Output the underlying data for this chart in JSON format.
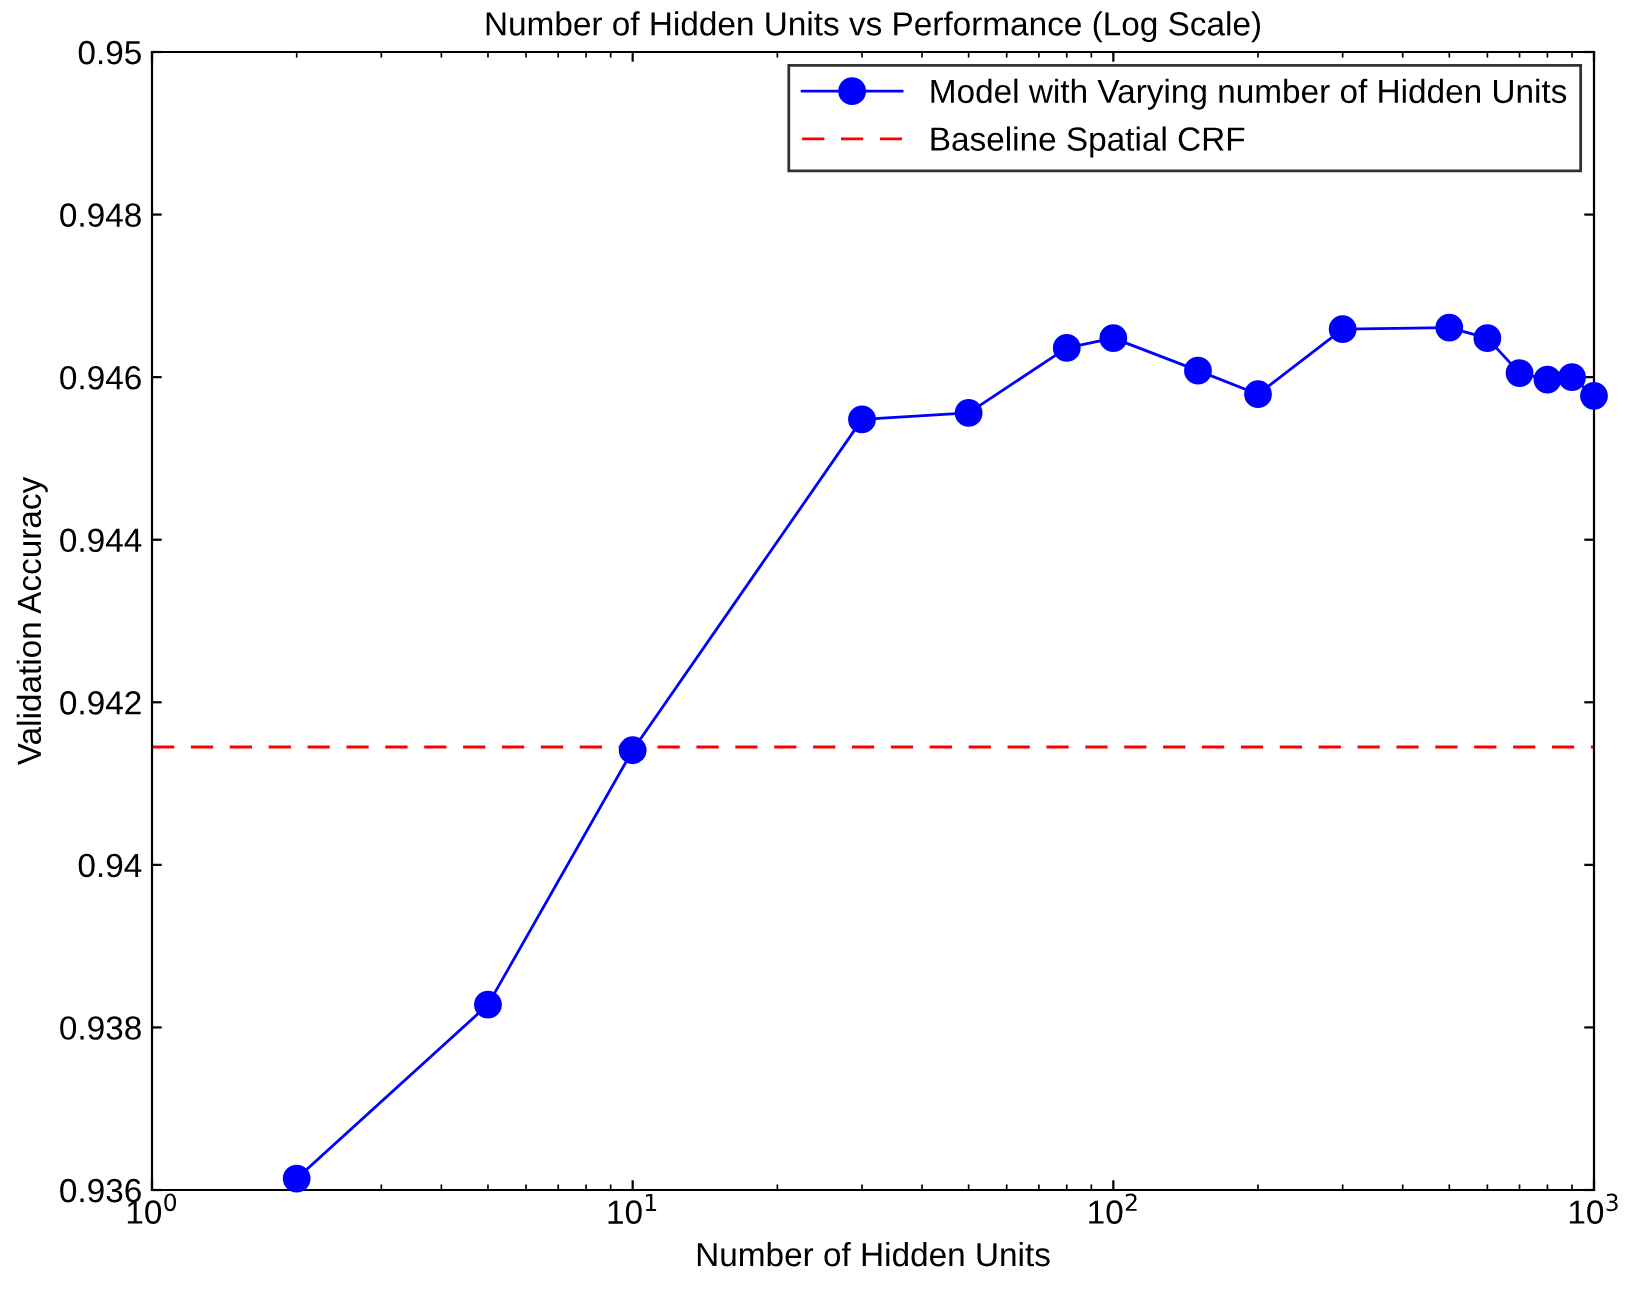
{
  "chart_data": {
    "type": "line",
    "title": "Number of Hidden Units vs Performance (Log Scale)",
    "xlabel": "Number of Hidden Units",
    "ylabel": "Validation Accuracy",
    "log": "x",
    "xlim": [
      1,
      1000
    ],
    "ylim": [
      0.936,
      0.95
    ],
    "xticks": [
      {
        "value": 1,
        "label": "10$^{0}$"
      },
      {
        "value": 10,
        "label": "10$^{1}$"
      },
      {
        "value": 100,
        "label": "10$^{2}$"
      },
      {
        "value": 1000,
        "label": "10$^{3}$"
      }
    ],
    "yticks": [
      0.936,
      0.938,
      0.94,
      0.942,
      0.944,
      0.946,
      0.948,
      0.95
    ],
    "grid": false,
    "legend": "top right",
    "marker": "circle",
    "line_style": "solid",
    "series": [
      {
        "name": "Model with Varying number of Hidden Units",
        "color": "#0000ff",
        "x": [
          2,
          5,
          10,
          30,
          50,
          80,
          100,
          150,
          200,
          300,
          500,
          600,
          700,
          800,
          900,
          1000
        ],
        "values": [
          0.93614,
          0.93828,
          0.94141,
          0.94548,
          0.94556,
          0.94636,
          0.94648,
          0.94608,
          0.94579,
          0.94659,
          0.94661,
          0.94648,
          0.94605,
          0.94597,
          0.946,
          0.94577
        ]
      }
    ],
    "ref_lines": [
      {
        "axis": "y",
        "value": 0.94145,
        "label": "Baseline Spatial CRF",
        "color": "#ff0000",
        "line_style": "dashed"
      }
    ]
  }
}
